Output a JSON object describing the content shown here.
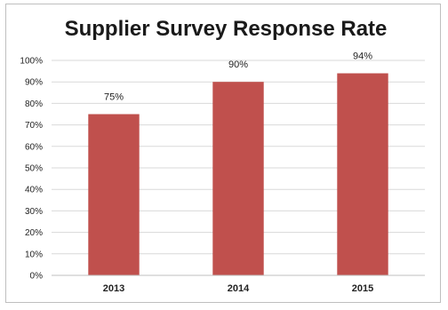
{
  "chart_data": {
    "type": "bar",
    "title": "Supplier Survey Response Rate",
    "categories": [
      "2013",
      "2014",
      "2015"
    ],
    "values": [
      75,
      90,
      94
    ],
    "data_labels": [
      "75%",
      "90%",
      "94%"
    ],
    "ylim": [
      0,
      100
    ],
    "yticks": [
      "0%",
      "10%",
      "20%",
      "30%",
      "40%",
      "50%",
      "60%",
      "70%",
      "80%",
      "90%",
      "100%"
    ],
    "grid": true,
    "legend": "none",
    "bar_color": "#c0504d",
    "gridline_color": "#d9d9d9"
  }
}
